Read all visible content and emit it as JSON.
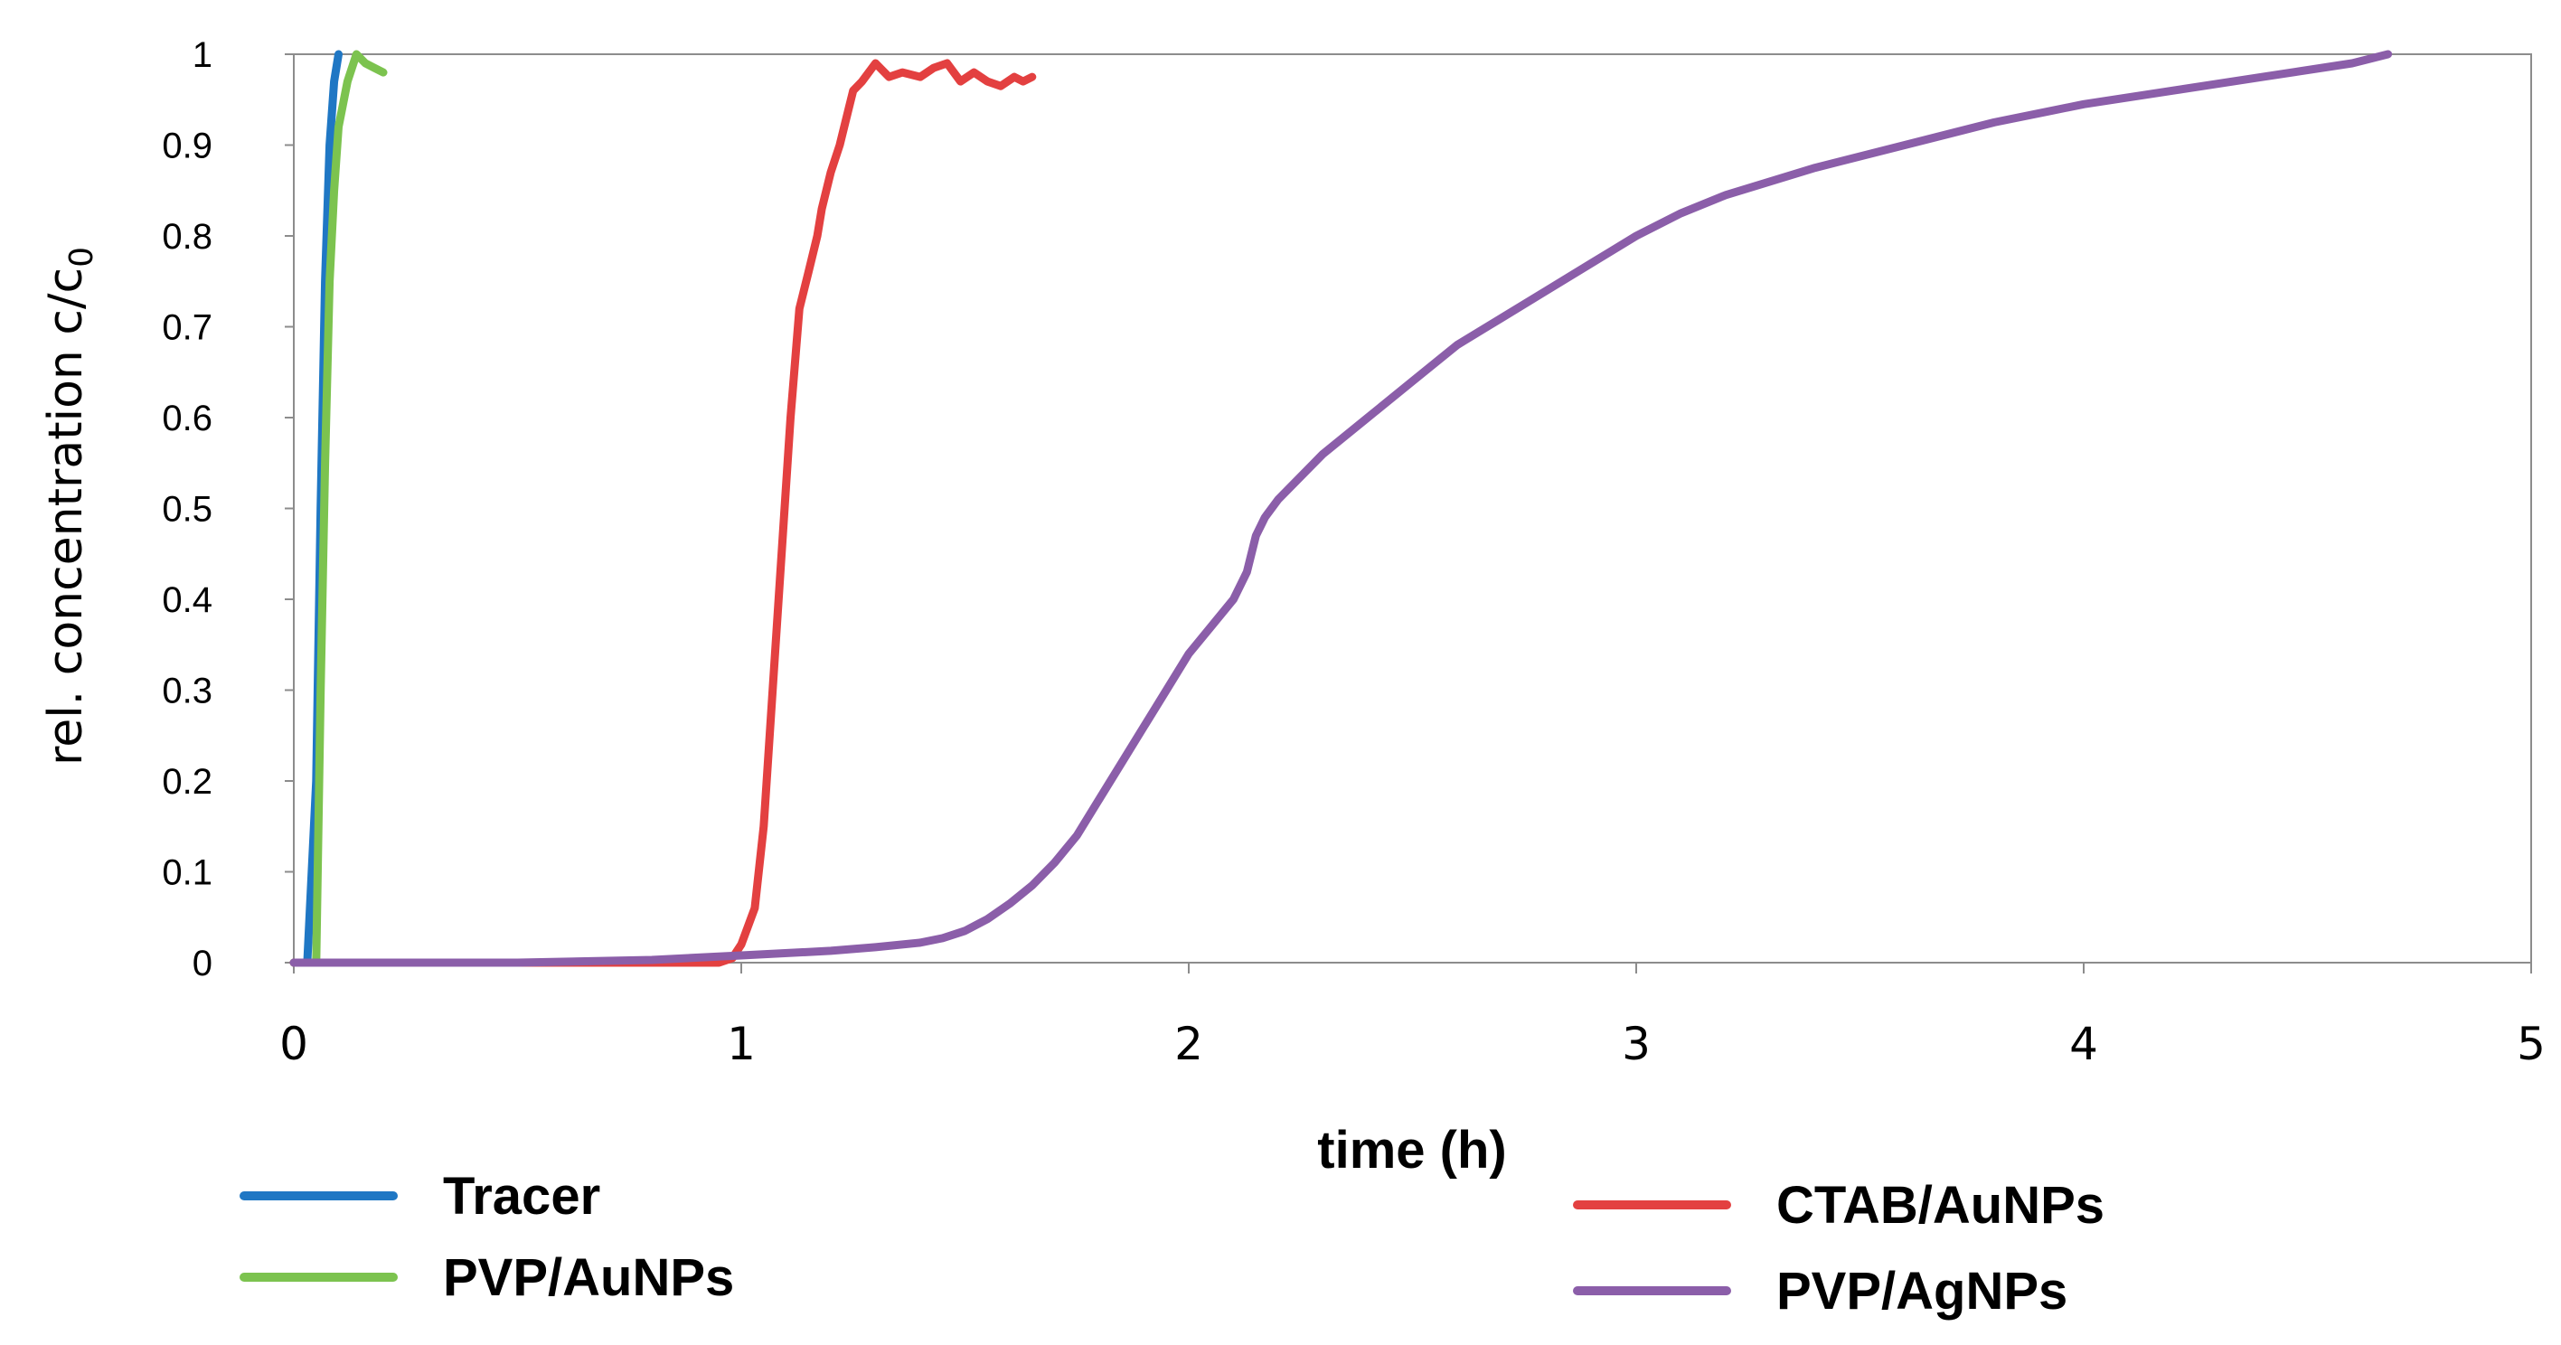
{
  "chart_data": {
    "type": "line",
    "xlabel": "time (h)",
    "ylabel": "rel. concentration c/c",
    "ylabel_subscript": "0",
    "xlim": [
      0,
      5
    ],
    "ylim": [
      0,
      1
    ],
    "x_ticks": [
      "0",
      "1",
      "2",
      "3",
      "4",
      "5"
    ],
    "y_ticks": [
      "0",
      "0.1",
      "0.2",
      "0.3",
      "0.4",
      "0.5",
      "0.6",
      "0.7",
      "0.8",
      "0.9",
      "1"
    ],
    "grid": false,
    "legend_position": "bottom",
    "series": [
      {
        "name": "Tracer",
        "color": "#1f77c4",
        "x": [
          0.0,
          0.03,
          0.05,
          0.06,
          0.07,
          0.08,
          0.09,
          0.1
        ],
        "y": [
          0.0,
          0.0,
          0.2,
          0.5,
          0.75,
          0.9,
          0.97,
          1.0
        ]
      },
      {
        "name": "PVP/AuNPs",
        "color": "#7cc34f",
        "x": [
          0.0,
          0.04,
          0.05,
          0.06,
          0.07,
          0.08,
          0.09,
          0.1,
          0.12,
          0.14,
          0.16,
          0.18,
          0.2
        ],
        "y": [
          0.0,
          0.0,
          0.0,
          0.3,
          0.55,
          0.75,
          0.85,
          0.92,
          0.97,
          1.0,
          0.99,
          0.985,
          0.98
        ]
      },
      {
        "name": "CTAB/AuNPs",
        "color": "#e34040",
        "x": [
          0.0,
          0.5,
          0.9,
          0.95,
          0.98,
          1.0,
          1.03,
          1.05,
          1.07,
          1.09,
          1.11,
          1.13,
          1.15,
          1.17,
          1.18,
          1.2,
          1.22,
          1.24,
          1.25,
          1.27,
          1.3,
          1.33,
          1.36,
          1.4,
          1.43,
          1.46,
          1.49,
          1.52,
          1.55,
          1.58,
          1.61,
          1.63,
          1.65
        ],
        "y": [
          0.0,
          0.0,
          0.0,
          0.0,
          0.005,
          0.02,
          0.06,
          0.15,
          0.3,
          0.45,
          0.6,
          0.72,
          0.76,
          0.8,
          0.83,
          0.87,
          0.9,
          0.94,
          0.96,
          0.97,
          0.99,
          0.975,
          0.98,
          0.975,
          0.985,
          0.99,
          0.97,
          0.98,
          0.97,
          0.965,
          0.975,
          0.97,
          0.975
        ]
      },
      {
        "name": "PVP/AgNPs",
        "color": "#8b5ea9",
        "x": [
          0.0,
          0.5,
          0.8,
          1.0,
          1.2,
          1.3,
          1.4,
          1.45,
          1.5,
          1.55,
          1.6,
          1.65,
          1.7,
          1.75,
          1.8,
          1.85,
          1.9,
          1.95,
          2.0,
          2.05,
          2.1,
          2.13,
          2.15,
          2.17,
          2.2,
          2.3,
          2.4,
          2.5,
          2.6,
          2.7,
          2.8,
          2.9,
          3.0,
          3.1,
          3.2,
          3.4,
          3.6,
          3.8,
          4.0,
          4.2,
          4.4,
          4.6,
          4.68
        ],
        "y": [
          0.0,
          0.0,
          0.003,
          0.008,
          0.013,
          0.017,
          0.022,
          0.027,
          0.035,
          0.048,
          0.065,
          0.085,
          0.11,
          0.14,
          0.18,
          0.22,
          0.26,
          0.3,
          0.34,
          0.37,
          0.4,
          0.43,
          0.47,
          0.49,
          0.51,
          0.56,
          0.6,
          0.64,
          0.68,
          0.71,
          0.74,
          0.77,
          0.8,
          0.825,
          0.845,
          0.875,
          0.9,
          0.925,
          0.945,
          0.96,
          0.975,
          0.99,
          1.0
        ]
      }
    ]
  }
}
